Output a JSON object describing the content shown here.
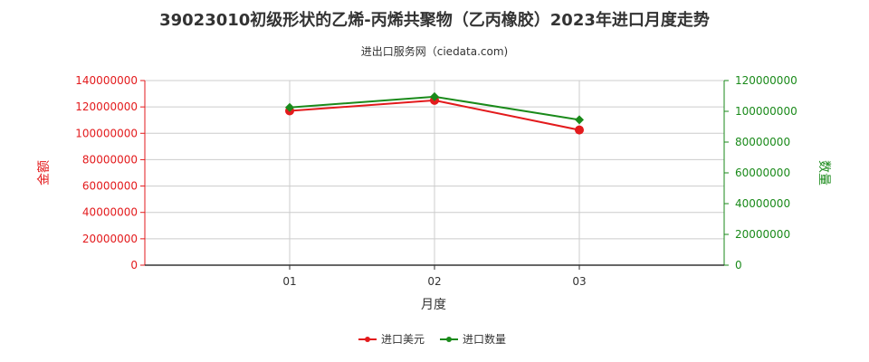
{
  "chart_data": {
    "type": "line",
    "title": "39023010初级形状的乙烯-丙烯共聚物（乙丙橡胶）2023年进口月度走势",
    "subtitle": "进出口服务网（ciedata.com)",
    "xlabel": "月度",
    "ylabel_left": "金额",
    "ylabel_right": "数量",
    "categories": [
      "01",
      "02",
      "03"
    ],
    "y_left_range": [
      0,
      140000000
    ],
    "y_left_ticks": [
      0,
      20000000,
      40000000,
      60000000,
      80000000,
      100000000,
      120000000,
      140000000
    ],
    "y_right_range": [
      0,
      120000000
    ],
    "y_right_ticks": [
      0,
      20000000,
      40000000,
      60000000,
      80000000,
      100000000,
      120000000
    ],
    "grid": true,
    "legend_position": "bottom",
    "series": [
      {
        "name": "进口美元",
        "axis": "left",
        "color": "#e31a1c",
        "marker": "circle",
        "values": [
          117000000,
          125000000,
          102500000
        ]
      },
      {
        "name": "进口数量",
        "axis": "right",
        "color": "#1a8a1a",
        "marker": "diamond",
        "values": [
          102500000,
          109500000,
          94500000
        ]
      }
    ],
    "colors": {
      "left_axis": "#e31a1c",
      "right_axis": "#1a8a1a",
      "grid": "#cccccc",
      "axis": "#333333"
    }
  }
}
